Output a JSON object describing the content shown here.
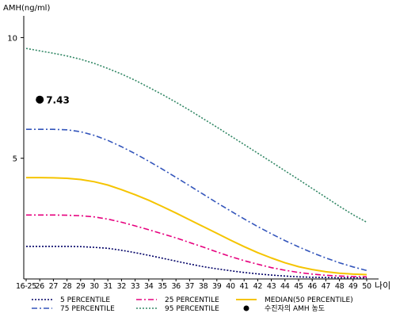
{
  "chart_data": {
    "type": "line",
    "ylabel": "AMH(ng/ml)",
    "xlabel": "나이",
    "yticks": [
      5,
      10
    ],
    "ylim": [
      0,
      10.9
    ],
    "categories": [
      "16-25",
      "26",
      "27",
      "28",
      "29",
      "30",
      "31",
      "32",
      "33",
      "34",
      "35",
      "36",
      "37",
      "38",
      "39",
      "40",
      "41",
      "42",
      "43",
      "44",
      "45",
      "46",
      "47",
      "48",
      "49",
      "50"
    ],
    "series": [
      {
        "name": "5 PERCENTILE",
        "color": "#000066",
        "dash": "2,2",
        "values": [
          1.35,
          1.35,
          1.35,
          1.35,
          1.34,
          1.31,
          1.27,
          1.19,
          1.09,
          0.98,
          0.86,
          0.74,
          0.62,
          0.51,
          0.42,
          0.34,
          0.27,
          0.21,
          0.16,
          0.12,
          0.09,
          0.07,
          0.06,
          0.05,
          0.05,
          0.05
        ]
      },
      {
        "name": "25 PERCENTILE",
        "color": "#e6007e",
        "dash": "7,3,2,3",
        "values": [
          2.65,
          2.65,
          2.65,
          2.64,
          2.62,
          2.57,
          2.48,
          2.35,
          2.2,
          2.04,
          1.87,
          1.7,
          1.51,
          1.32,
          1.12,
          0.93,
          0.76,
          0.61,
          0.47,
          0.36,
          0.27,
          0.2,
          0.15,
          0.12,
          0.1,
          0.09
        ]
      },
      {
        "name": "MEDIAN(50 PERCENTILE)",
        "color": "#f5c400",
        "dash": "",
        "values": [
          4.2,
          4.2,
          4.19,
          4.17,
          4.12,
          4.03,
          3.89,
          3.7,
          3.49,
          3.26,
          3.0,
          2.73,
          2.45,
          2.17,
          1.89,
          1.61,
          1.34,
          1.09,
          0.87,
          0.67,
          0.51,
          0.39,
          0.3,
          0.24,
          0.2,
          0.18
        ]
      },
      {
        "name": "75 PERCENTILE",
        "color": "#3355bb",
        "dash": "7,3,2,3",
        "values": [
          6.2,
          6.2,
          6.2,
          6.18,
          6.1,
          5.95,
          5.74,
          5.48,
          5.19,
          4.88,
          4.55,
          4.21,
          3.86,
          3.51,
          3.16,
          2.82,
          2.49,
          2.17,
          1.87,
          1.59,
          1.33,
          1.09,
          0.87,
          0.67,
          0.5,
          0.35
        ]
      },
      {
        "name": "95 PERCENTILE",
        "color": "#338866",
        "dash": "2,2",
        "values": [
          9.55,
          9.45,
          9.35,
          9.24,
          9.1,
          8.93,
          8.72,
          8.49,
          8.23,
          7.94,
          7.64,
          7.32,
          6.99,
          6.64,
          6.29,
          5.93,
          5.57,
          5.21,
          4.85,
          4.48,
          4.12,
          3.75,
          3.38,
          3.01,
          2.66,
          2.35
        ]
      }
    ],
    "markers": [
      {
        "name": "수진자의 AMH 농도",
        "x": "26",
        "y": 7.43,
        "label": "7.43"
      }
    ]
  }
}
